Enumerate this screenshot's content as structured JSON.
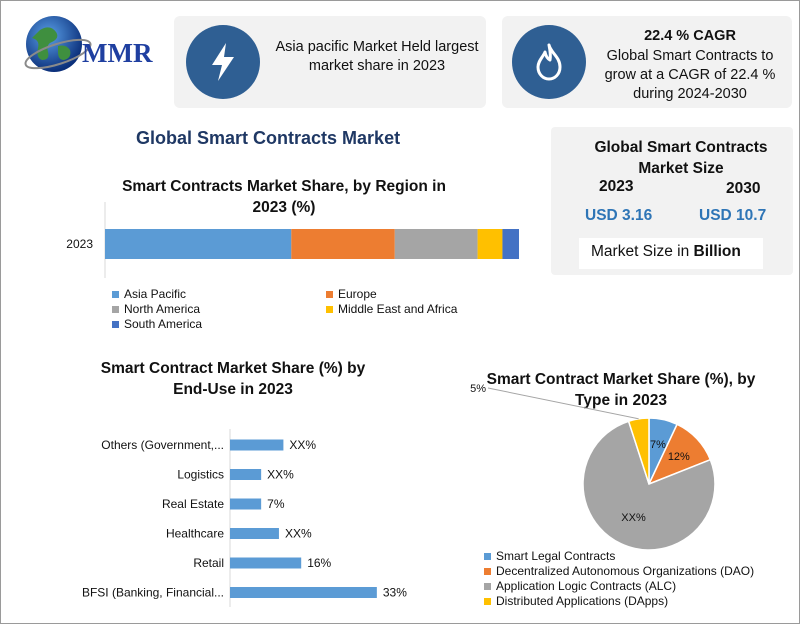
{
  "logo": {
    "text": "MMR"
  },
  "card_region": {
    "icon": "lightning-icon",
    "text": "Asia pacific Market Held largest market share in 2023"
  },
  "card_cagr": {
    "icon": "flame-icon",
    "title": "22.4 % CAGR",
    "text": "Global Smart Contracts to grow at a CAGR of 22.4 % during 2024-2030"
  },
  "main_title": "Global Smart Contracts Market",
  "market_size": {
    "title": "Global Smart Contracts Market Size",
    "year_a": "2023",
    "year_b": "2030",
    "value_a": "USD 3.16",
    "value_b": "USD 10.7",
    "unit_prefix": "Market Size in ",
    "unit_bold": "Billion"
  },
  "colors": {
    "blue": "#5b9bd5",
    "orange": "#ed7d31",
    "gray": "#a5a5a5",
    "yellow": "#ffc000",
    "dark_blue": "#4472c4",
    "navy": "#1f3864",
    "value_blue": "#2e75b6"
  },
  "chart_data": [
    {
      "type": "bar",
      "orientation": "horizontal-stacked",
      "title": "Smart Contracts Market Share, by Region in 2023 (%)",
      "categories": [
        "2023"
      ],
      "series": [
        {
          "name": "Asia Pacific",
          "values": [
            45
          ]
        },
        {
          "name": "Europe",
          "values": [
            25
          ]
        },
        {
          "name": "North America",
          "values": [
            20
          ]
        },
        {
          "name": "Middle East and Africa",
          "values": [
            6
          ]
        },
        {
          "name": "South America",
          "values": [
            4
          ]
        }
      ],
      "legend": "bottom"
    },
    {
      "type": "bar",
      "orientation": "horizontal",
      "title": "Smart Contract Market Share (%) by End-Use in 2023",
      "categories": [
        "Others (Government,...",
        "Logistics",
        "Real Estate",
        "Healthcare",
        "Retail",
        "BFSI (Banking, Financial..."
      ],
      "values": [
        12,
        7,
        7,
        11,
        16,
        33
      ],
      "data_labels": [
        "XX%",
        "XX%",
        "7%",
        "XX%",
        "16%",
        "33%"
      ]
    },
    {
      "type": "pie",
      "title": "Smart Contract  Market Share (%), by Type in 2023",
      "categories": [
        "Smart Legal Contracts",
        "Decentralized Autonomous Organizations (DAO)",
        "Application Logic Contracts (ALC)",
        "Distributed Applications (DApps)"
      ],
      "values": [
        7,
        12,
        76,
        5
      ],
      "data_labels": [
        "7%",
        "12%",
        "XX%",
        "5%"
      ],
      "legend": "bottom"
    }
  ]
}
